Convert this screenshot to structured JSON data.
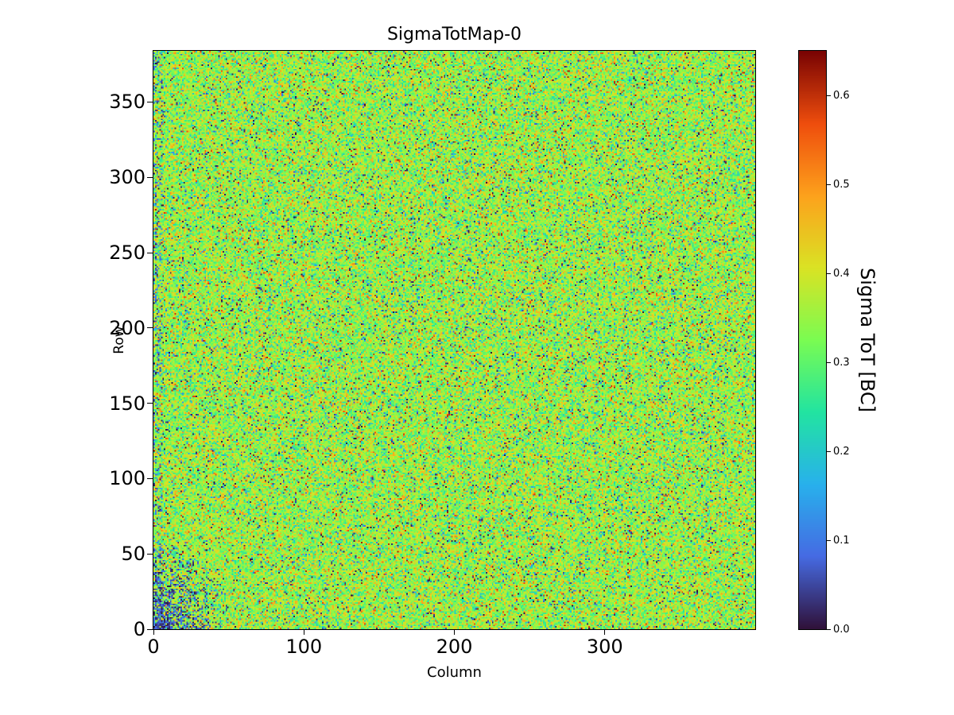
{
  "figure": {
    "background": "#ffffff",
    "spine_color": "#000000"
  },
  "chart_data": {
    "type": "heatmap",
    "title": "SigmaTotMap-0",
    "xlabel": "Column",
    "ylabel": "Row",
    "x_range": [
      0,
      400
    ],
    "y_range": [
      0,
      384
    ],
    "x_ticks": [
      0,
      100,
      200,
      300
    ],
    "y_ticks": [
      0,
      50,
      100,
      150,
      200,
      250,
      300,
      350
    ],
    "grid": false,
    "legend": "none",
    "colorbar": {
      "label": "Sigma ToT [BC]",
      "position": "right",
      "vmin": 0.0,
      "vmax": 0.65,
      "ticks": [
        0.0,
        0.1,
        0.2,
        0.3,
        0.4,
        0.5,
        0.6
      ],
      "colormap": "turbo",
      "colormap_stops": [
        [
          0.0,
          48,
          18,
          59
        ],
        [
          0.125,
          70,
          107,
          227
        ],
        [
          0.25,
          40,
          177,
          236
        ],
        [
          0.375,
          34,
          228,
          161
        ],
        [
          0.5,
          122,
          252,
          82
        ],
        [
          0.625,
          218,
          227,
          36
        ],
        [
          0.75,
          253,
          162,
          28
        ],
        [
          0.875,
          239,
          78,
          13
        ],
        [
          1.0,
          122,
          4,
          3
        ]
      ]
    },
    "data_model": {
      "description": "Pixel-detector sigma-ToT map, 400 columns x 384 rows of per-pixel noise. Bulk of pixels ~0.25-0.45 BC (green/yellow/orange speckle), scattered cyan/blue low outliers, sparse near-zero dark pixels and rare red high outliers. Dense cluster of near-zero (dark) pixels in the bottom-left corner fading out by ~column 55 / row 68, plus extra dark speckle along the left edge.",
      "n_cols": 400,
      "n_rows": 384,
      "base_mean": 0.35,
      "base_sd": 0.065,
      "low_outlier_frac": 0.045,
      "low_outlier_max": 0.25,
      "high_outlier_frac": 0.03,
      "high_outlier_range": [
        0.45,
        0.63
      ],
      "dead_frac": 0.015,
      "dark_cluster": {
        "center_col": 0,
        "center_row": 0,
        "extent_cols": 55,
        "extent_rows": 68,
        "peak_prob": 0.85,
        "value_max": 0.12
      },
      "left_edge": {
        "cols": 6,
        "prob": 0.18,
        "value_max": 0.15
      },
      "seed": 1337
    }
  }
}
